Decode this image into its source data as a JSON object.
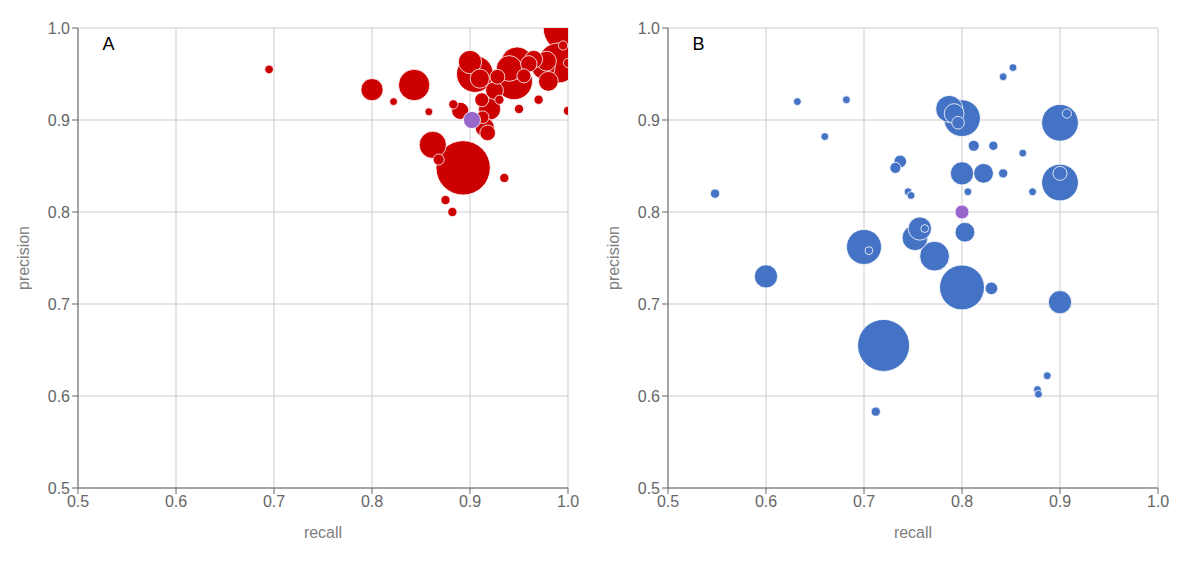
{
  "chart_data": [
    {
      "type": "scatter",
      "annotations": [
        "A"
      ],
      "xlabel": "recall",
      "ylabel": "precision",
      "xlim": [
        0.5,
        1.0
      ],
      "ylim": [
        0.5,
        1.0
      ],
      "xticks": [
        0.5,
        0.6,
        0.7,
        0.8,
        0.9,
        {
          "value": 1,
          "label": "1.0"
        }
      ],
      "yticks": [
        0.5,
        0.6,
        0.7,
        0.8,
        0.9,
        {
          "value": 1,
          "label": "1.0"
        }
      ],
      "grid": true,
      "series": [
        {
          "color": "#cc0000",
          "x": [
            0.893,
            1.0,
            0.99,
            0.905,
            0.945,
            0.948,
            0.843,
            0.862,
            0.94,
            0.9,
            0.975,
            0.8,
            0.92,
            0.978,
            0.98,
            0.91,
            0.915,
            0.925,
            0.965,
            0.89,
            0.96,
            0.918,
            0.928,
            0.912,
            0.955,
            0.913,
            0.868,
            0.875,
            0.882,
            0.883,
            0.93,
            0.935,
            0.95,
            0.97,
            0.995,
            1.0,
            1.0,
            0.695,
            0.822,
            0.858
          ],
          "y": [
            0.848,
            1.0,
            0.962,
            0.95,
            0.942,
            0.962,
            0.938,
            0.873,
            0.956,
            0.963,
            0.957,
            0.933,
            0.912,
            0.964,
            0.942,
            0.945,
            0.892,
            0.932,
            0.966,
            0.91,
            0.961,
            0.886,
            0.947,
            0.922,
            0.948,
            0.903,
            0.857,
            0.813,
            0.8,
            0.917,
            0.922,
            0.837,
            0.912,
            0.922,
            0.981,
            0.962,
            0.91,
            0.955,
            0.92,
            0.909
          ],
          "size": [
            1200,
            1000,
            650,
            550,
            550,
            420,
            400,
            300,
            270,
            220,
            220,
            200,
            200,
            160,
            160,
            150,
            150,
            130,
            130,
            120,
            110,
            100,
            90,
            80,
            80,
            65,
            50,
            35,
            35,
            35,
            35,
            35,
            35,
            35,
            35,
            35,
            35,
            30,
            25,
            25
          ]
        },
        {
          "color": "#9966cc",
          "x": [
            0.902
          ],
          "y": [
            0.9
          ],
          "size": [
            120
          ]
        }
      ]
    },
    {
      "type": "scatter",
      "annotations": [
        "B"
      ],
      "xlabel": "recall",
      "ylabel": "precision",
      "xlim": [
        0.5,
        1.0
      ],
      "ylim": [
        0.5,
        1.0
      ],
      "xticks": [
        0.5,
        0.6,
        0.7,
        0.8,
        0.9,
        {
          "value": 1,
          "label": "1.0"
        }
      ],
      "yticks": [
        0.5,
        0.6,
        0.7,
        0.8,
        0.9,
        {
          "value": 1,
          "label": "1.0"
        }
      ],
      "grid": true,
      "series": [
        {
          "color": "#4472c4",
          "x": [
            0.72,
            0.8,
            0.8,
            0.9,
            0.9,
            0.7,
            0.772,
            0.787,
            0.752,
            0.6,
            0.757,
            0.8,
            0.9,
            0.792,
            0.803,
            0.822,
            0.9,
            0.737,
            0.796,
            0.83,
            0.732,
            0.812,
            0.548,
            0.712,
            0.832,
            0.842,
            0.907,
            0.632,
            0.66,
            0.682,
            0.705,
            0.745,
            0.748,
            0.762,
            0.806,
            0.842,
            0.852,
            0.862,
            0.872,
            0.877,
            0.878,
            0.887
          ],
          "y": [
            0.655,
            0.718,
            0.902,
            0.832,
            0.897,
            0.762,
            0.752,
            0.912,
            0.772,
            0.73,
            0.782,
            0.842,
            0.702,
            0.907,
            0.778,
            0.842,
            0.842,
            0.855,
            0.897,
            0.717,
            0.848,
            0.872,
            0.82,
            0.583,
            0.872,
            0.842,
            0.907,
            0.92,
            0.882,
            0.922,
            0.758,
            0.822,
            0.818,
            0.782,
            0.822,
            0.947,
            0.957,
            0.864,
            0.822,
            0.607,
            0.602,
            0.622
          ],
          "size": [
            1100,
            820,
            550,
            550,
            550,
            500,
            360,
            300,
            270,
            220,
            220,
            220,
            220,
            160,
            160,
            160,
            80,
            65,
            65,
            65,
            50,
            50,
            35,
            35,
            35,
            35,
            35,
            25,
            25,
            25,
            25,
            25,
            25,
            25,
            25,
            25,
            25,
            25,
            25,
            25,
            25,
            25
          ]
        },
        {
          "color": "#9966cc",
          "x": [
            0.8
          ],
          "y": [
            0.8
          ],
          "size": [
            80
          ]
        }
      ]
    }
  ]
}
